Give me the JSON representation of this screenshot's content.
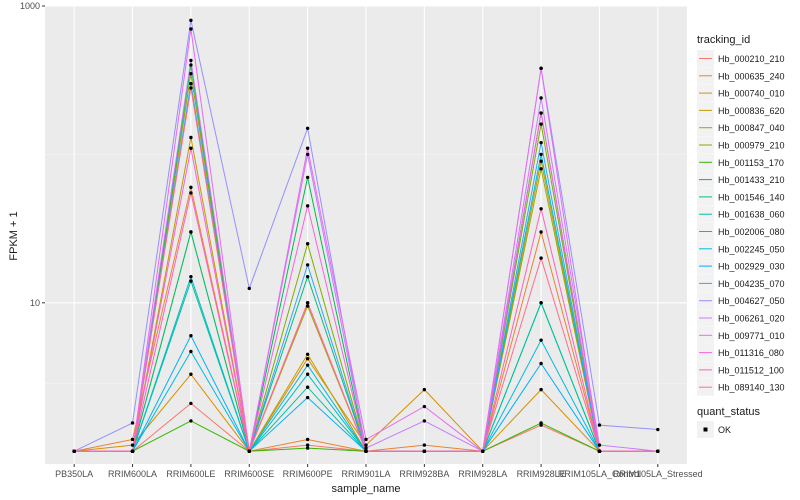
{
  "chart_data": {
    "type": "line",
    "title": "",
    "xlabel": "sample_name",
    "ylabel": "FPKM + 1",
    "y_scale": "log10",
    "ylim": [
      0.82,
      1000
    ],
    "y_ticks": [
      10,
      1000
    ],
    "y_tick_labels": [
      "10",
      "1000"
    ],
    "grid": true,
    "categories": [
      "PB350LA",
      "RRIM600LA",
      "RRIM600LE",
      "RRIM600SE",
      "RRIM600PE",
      "RRIM901LA",
      "RRIM928BA",
      "RRIM928LA",
      "RRIM928LE",
      "RRIM105LA_Control",
      "RRIM105LA_Stressed"
    ],
    "x_tick_labels": [
      "PB350LA",
      "RRIM600LA",
      "RRIM600LE",
      "RRIM600SE",
      "RRIM600PE",
      "RRIM901LA",
      "RRIM928BA",
      "RRIM928LA",
      "RRIM928LE",
      "RRIM105LA_Control",
      "RRIM105LA_Stressed"
    ],
    "legend": {
      "title": "tracking_id",
      "position": "right"
    },
    "series": [
      {
        "name": "Hb_000210_210",
        "color": "#F8766D",
        "values": [
          1.0,
          1.0,
          2.1,
          1.0,
          1.1,
          1.0,
          1.0,
          1.0,
          1.5,
          1.0,
          1.0
        ]
      },
      {
        "name": "Hb_000635_240",
        "color": "#EA8331",
        "values": [
          1.0,
          1.2,
          60,
          1.0,
          1.2,
          1.0,
          1.1,
          1.0,
          30,
          1.0,
          1.0
        ]
      },
      {
        "name": "Hb_000740_010",
        "color": "#D89000",
        "values": [
          1.0,
          1.1,
          3.3,
          1.0,
          4.2,
          1.1,
          2.6,
          1.0,
          2.6,
          1.0,
          1.0
        ]
      },
      {
        "name": "Hb_000836_620",
        "color": "#C09B00",
        "values": [
          1.0,
          1.0,
          130,
          1.0,
          4.5,
          1.0,
          1.0,
          1.0,
          90,
          1.0,
          1.0
        ]
      },
      {
        "name": "Hb_000847_040",
        "color": "#A3A500",
        "values": [
          1.0,
          1.0,
          30,
          1.0,
          9.5,
          1.0,
          1.0,
          1.0,
          80,
          1.0,
          1.0
        ]
      },
      {
        "name": "Hb_000979_210",
        "color": "#7CAE00",
        "values": [
          1.0,
          1.0,
          350,
          1.0,
          25,
          1.0,
          1.0,
          1.0,
          160,
          1.0,
          1.0
        ]
      },
      {
        "name": "Hb_001153_170",
        "color": "#39B600",
        "values": [
          1.0,
          1.0,
          1.6,
          1.0,
          1.05,
          1.0,
          1.0,
          1.0,
          1.55,
          1.0,
          1.0
        ]
      },
      {
        "name": "Hb_001433_210",
        "color": "#00BB4E",
        "values": [
          1.0,
          1.0,
          400,
          1.0,
          70,
          1.0,
          1.0,
          1.0,
          190,
          1.0,
          1.0
        ]
      },
      {
        "name": "Hb_001546_140",
        "color": "#00BF7D",
        "values": [
          1.0,
          1.0,
          30,
          1.0,
          15,
          1.0,
          1.0,
          1.0,
          10,
          1.0,
          1.0
        ]
      },
      {
        "name": "Hb_001638_060",
        "color": "#00C1A3",
        "values": [
          1.0,
          1.0,
          14,
          1.0,
          2.7,
          1.0,
          1.0,
          1.0,
          10,
          1.0,
          1.0
        ]
      },
      {
        "name": "Hb_002006_080",
        "color": "#00BFC4",
        "values": [
          1.0,
          1.0,
          15,
          1.0,
          3.3,
          1.0,
          1.0,
          1.0,
          100,
          1.0,
          1.0
        ]
      },
      {
        "name": "Hb_002245_050",
        "color": "#00BAE0",
        "values": [
          1.0,
          1.0,
          4.7,
          1.0,
          3.8,
          1.0,
          1.0,
          1.0,
          5.6,
          1.0,
          1.0
        ]
      },
      {
        "name": "Hb_002929_030",
        "color": "#00B0F6",
        "values": [
          1.0,
          1.0,
          6.0,
          1.0,
          2.3,
          1.0,
          1.0,
          1.0,
          3.9,
          1.0,
          1.0
        ]
      },
      {
        "name": "Hb_004235_070",
        "color": "#35A2FF",
        "values": [
          1.0,
          1.0,
          300,
          1.0,
          18,
          1.0,
          1.0,
          1.0,
          120,
          1.0,
          1.0
        ]
      },
      {
        "name": "Hb_004627_050",
        "color": "#9590FF",
        "values": [
          1.0,
          1.55,
          800,
          12.5,
          150,
          1.0,
          1.0,
          1.0,
          380,
          1.5,
          1.4
        ]
      },
      {
        "name": "Hb_006261_020",
        "color": "#C77CFF",
        "values": [
          1.0,
          1.0,
          430,
          1.0,
          100,
          1.05,
          1.6,
          1.0,
          240,
          1.1,
          1.0
        ]
      },
      {
        "name": "Hb_009771_010",
        "color": "#E76BF3",
        "values": [
          1.0,
          1.0,
          700,
          1.0,
          110,
          1.2,
          2.0,
          1.0,
          380,
          1.0,
          1.0
        ]
      },
      {
        "name": "Hb_011316_080",
        "color": "#FA62DB",
        "values": [
          1.0,
          1.0,
          110,
          1.0,
          45,
          1.0,
          1.0,
          1.0,
          190,
          1.0,
          1.0
        ]
      },
      {
        "name": "Hb_011512_100",
        "color": "#FF62BC",
        "values": [
          1.0,
          1.0,
          55,
          1.0,
          10,
          1.0,
          1.0,
          1.0,
          43,
          1.0,
          1.0
        ]
      },
      {
        "name": "Hb_089140_130",
        "color": "#FF6C91",
        "values": [
          1.0,
          1.0,
          280,
          1.0,
          10,
          1.0,
          1.0,
          1.0,
          20,
          1.0,
          1.0
        ]
      }
    ],
    "shape_legend": {
      "title": "quant_status",
      "items": [
        "OK"
      ]
    }
  }
}
